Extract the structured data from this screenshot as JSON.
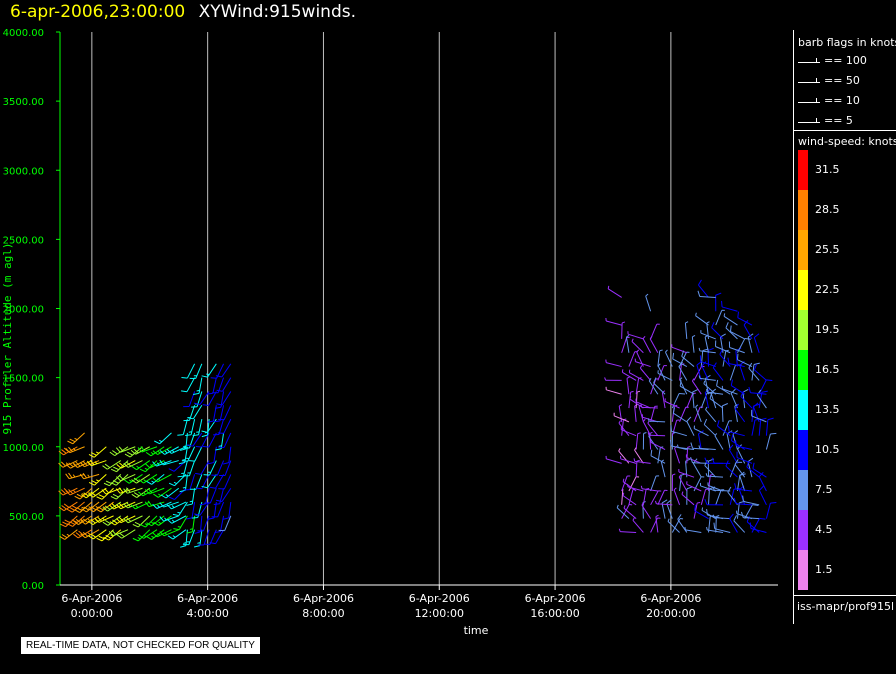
{
  "title": {
    "datetime": "6-apr-2006,23:00:00",
    "name": "XYWind:915winds."
  },
  "footer_note": "REAL-TIME DATA, NOT CHECKED FOR QUALITY",
  "legend": {
    "flags_heading": "barb flags in knots",
    "flags": [
      {
        "label": "== 100",
        "knots": 100
      },
      {
        "label": "== 50",
        "knots": 50
      },
      {
        "label": "== 10",
        "knots": 10
      },
      {
        "label": "== 5",
        "knots": 5
      }
    ],
    "speed_heading": "wind-speed: knots",
    "source": "iss-mapr/prof915l"
  },
  "chart_data": {
    "type": "scatter",
    "xlabel": "time",
    "ylabel": "915 Profiler Altitude (m agl)",
    "ylim": [
      0,
      4000
    ],
    "xlim_hours": [
      -1.1,
      23.7
    ],
    "y_ticks": [
      "0.00",
      "500.00",
      "1000.00",
      "1500.00",
      "2000.00",
      "2500.00",
      "3000.00",
      "3500.00",
      "4000.00"
    ],
    "x_ticks": [
      {
        "hour": 0,
        "date": "6-Apr-2006",
        "time": "0:00:00"
      },
      {
        "hour": 4,
        "date": "6-Apr-2006",
        "time": "4:00:00"
      },
      {
        "hour": 8,
        "date": "6-Apr-2006",
        "time": "8:00:00"
      },
      {
        "hour": 12,
        "date": "6-Apr-2006",
        "time": "12:00:00"
      },
      {
        "hour": 16,
        "date": "6-Apr-2006",
        "time": "16:00:00"
      },
      {
        "hour": 20,
        "date": "6-Apr-2006",
        "time": "20:00:00"
      }
    ],
    "grid": "vertical",
    "color_scale": [
      {
        "label": "31.5",
        "color": "#ff0000"
      },
      {
        "label": "28.5",
        "color": "#ff8000"
      },
      {
        "label": "25.5",
        "color": "#ffa500"
      },
      {
        "label": "22.5",
        "color": "#ffff00"
      },
      {
        "label": "19.5",
        "color": "#a0ff30"
      },
      {
        "label": "16.5",
        "color": "#00ff00"
      },
      {
        "label": "13.5",
        "color": "#00ffff"
      },
      {
        "label": "10.5",
        "color": "#0000ff"
      },
      {
        "label": "7.5",
        "color": "#6495ed"
      },
      {
        "label": "4.5",
        "color": "#9b30ff"
      },
      {
        "label": "1.5",
        "color": "#ee82ee"
      }
    ],
    "groups": [
      {
        "hour_start": -0.5,
        "hour_end": 3.2,
        "hour_step": 0.25,
        "alt_min": 400,
        "alt_max": 1200,
        "alt_step": 100,
        "speed_start": 28,
        "speed_end": 13,
        "dir_deg": 240
      },
      {
        "hour_start": 3.3,
        "hour_end": 4.8,
        "hour_step": 0.25,
        "alt_min": 400,
        "alt_max": 1700,
        "alt_step": 100,
        "speed_start": 14,
        "speed_end": 10,
        "dir_deg": 200
      },
      {
        "hour_start": 18.3,
        "hour_end": 23.3,
        "hour_step": 0.25,
        "alt_min": 380,
        "alt_max": 2100,
        "alt_step": 100,
        "speed_start": 4,
        "speed_end": 10,
        "dir_deg": 330
      }
    ]
  }
}
